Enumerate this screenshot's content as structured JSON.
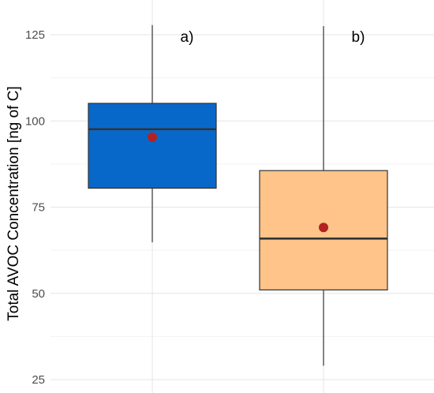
{
  "chart_data": {
    "type": "box",
    "title": "",
    "xlabel": "",
    "ylabel": "Total AVOC Concentration [ng of C]",
    "ylim": [
      25,
      128
    ],
    "yticks": [
      25,
      50,
      75,
      100,
      125
    ],
    "grid": true,
    "legend": "none",
    "series": [
      {
        "label": "a)",
        "color": "#0868c9",
        "min": 64.8,
        "q1": 80.5,
        "median": 97.6,
        "q3": 105.1,
        "max": 127.8,
        "mean": 95.3
      },
      {
        "label": "b)",
        "color": "#fec489",
        "min": 29.0,
        "q1": 51.0,
        "median": 65.9,
        "q3": 85.6,
        "max": 127.5,
        "mean": 69.1
      }
    ],
    "mean_marker_color": "#b22222"
  }
}
